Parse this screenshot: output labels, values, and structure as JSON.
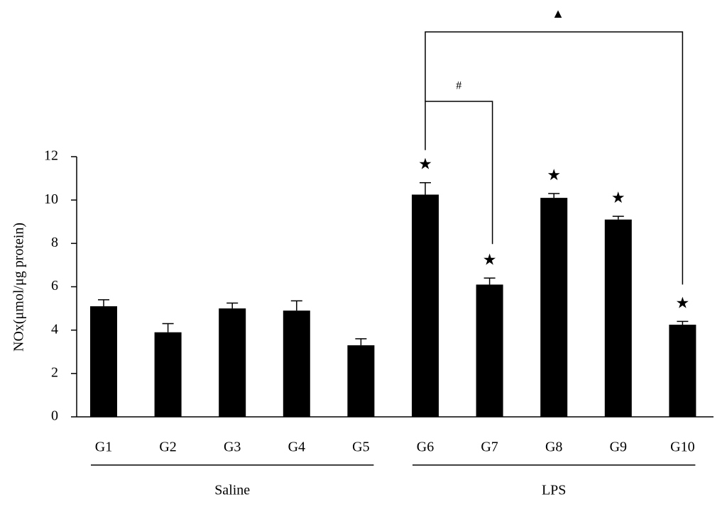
{
  "chart_data": {
    "type": "bar",
    "y_label": "NOx(μmol/μg protein)",
    "categories": [
      "G1",
      "G2",
      "G3",
      "G4",
      "G5",
      "G6",
      "G7",
      "G8",
      "G9",
      "G10"
    ],
    "values": [
      5.1,
      3.9,
      5.0,
      4.9,
      3.3,
      10.25,
      6.1,
      10.1,
      9.1,
      4.25
    ],
    "errors": [
      0.3,
      0.4,
      0.25,
      0.45,
      0.3,
      0.55,
      0.3,
      0.2,
      0.15,
      0.15
    ],
    "markers": [
      null,
      null,
      null,
      null,
      null,
      "★",
      "★",
      "★",
      "★",
      "★"
    ],
    "annotations": [
      "#",
      "▲"
    ],
    "groups": [
      "Saline",
      "LPS"
    ],
    "color": "#000000",
    "ylim": [
      0,
      12
    ],
    "yticks": [
      0,
      2,
      4,
      6,
      8,
      10,
      12
    ]
  }
}
